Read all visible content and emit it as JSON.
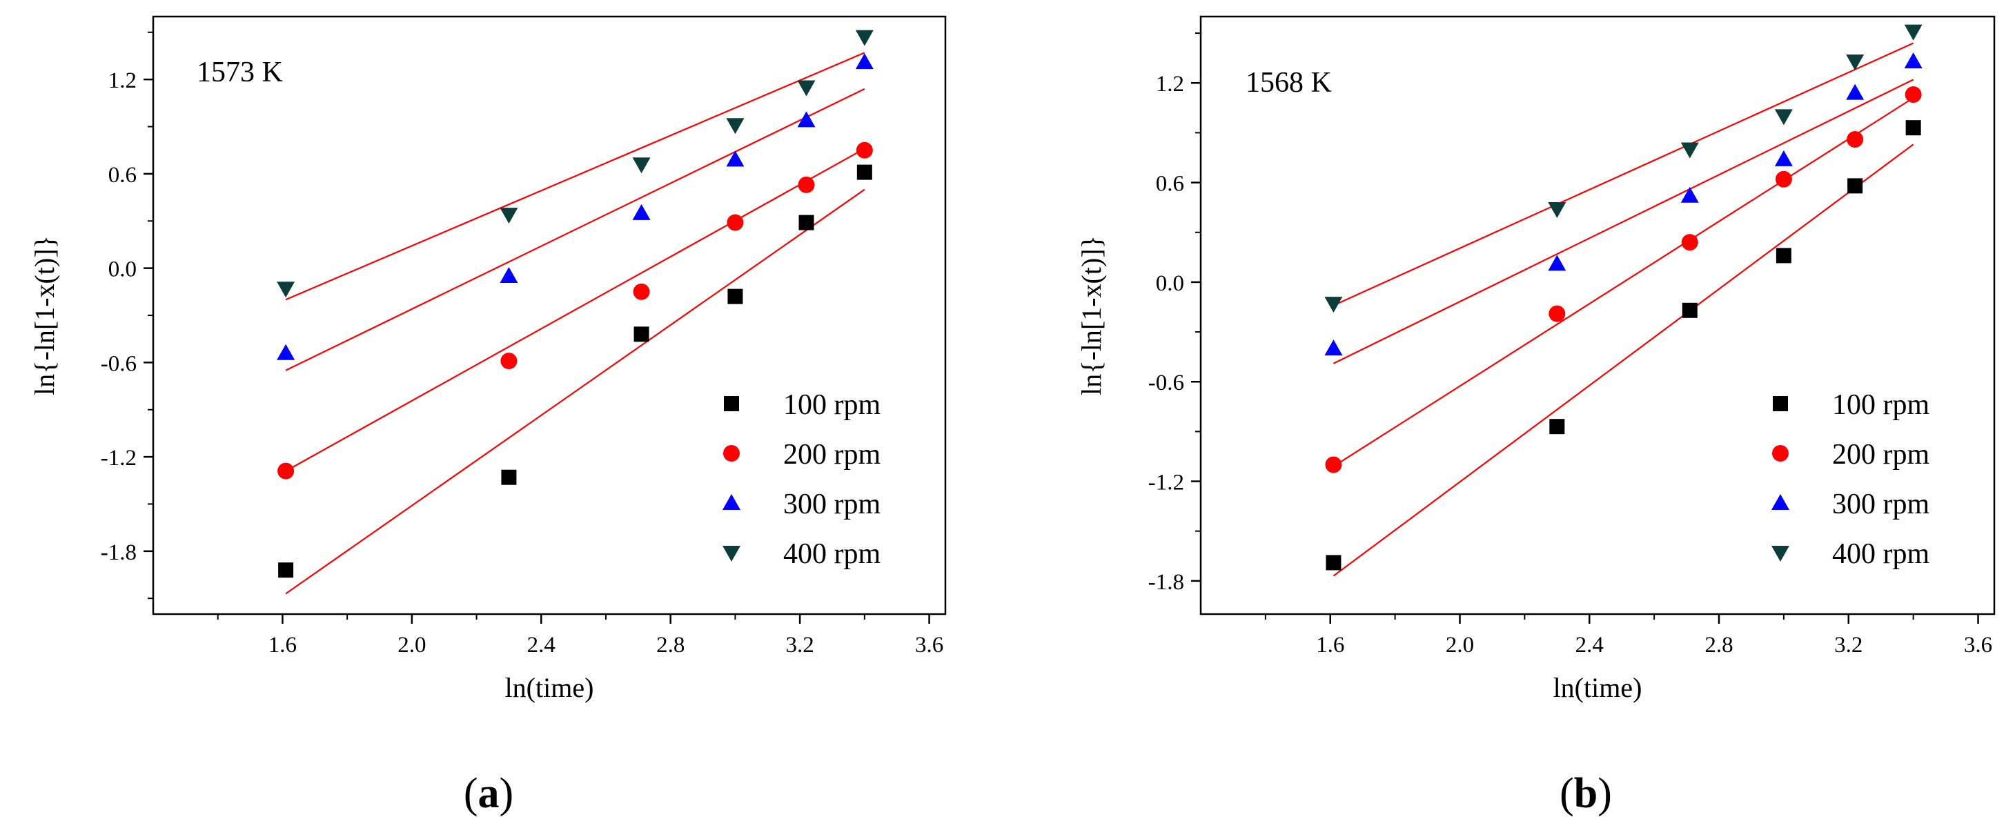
{
  "chart_data": [
    {
      "type": "scatter",
      "panel_label": "(a)",
      "annotation": "1573 K",
      "xlabel": "ln(time)",
      "ylabel": "ln{-ln[1-x(t)]}",
      "xlim": [
        1.2,
        3.65
      ],
      "ylim": [
        -2.2,
        1.6
      ],
      "xticks": [
        1.6,
        2.0,
        2.4,
        2.8,
        3.2,
        3.6
      ],
      "xtick_labels": [
        "1.6",
        "2.0",
        "2.4",
        "2.8",
        "3.2",
        "3.6"
      ],
      "yticks": [
        -1.8,
        -1.2,
        -0.6,
        0.0,
        0.6,
        1.2
      ],
      "ytick_labels": [
        "-1.8",
        "-1.2",
        "-0.6",
        "0.0",
        "0.6",
        "1.2"
      ],
      "legend_position": "bottom-right",
      "series": [
        {
          "name": "100 rpm",
          "marker": "square",
          "color": "#000000",
          "line_color": "#ff0000",
          "x": [
            1.61,
            2.3,
            2.71,
            3.0,
            3.22,
            3.4
          ],
          "y": [
            -1.92,
            -1.33,
            -0.42,
            -0.18,
            0.29,
            0.61
          ],
          "fit": [
            [
              1.61,
              -2.07
            ],
            [
              3.4,
              0.5
            ]
          ]
        },
        {
          "name": "200 rpm",
          "marker": "circle",
          "color": "#ff0000",
          "line_color": "#ff0000",
          "x": [
            1.61,
            2.3,
            2.71,
            3.0,
            3.22,
            3.4
          ],
          "y": [
            -1.29,
            -0.59,
            -0.15,
            0.29,
            0.53,
            0.75
          ],
          "fit": [
            [
              1.61,
              -1.29
            ],
            [
              3.4,
              0.76
            ]
          ]
        },
        {
          "name": "300 rpm",
          "marker": "triangle-up",
          "color": "#0000ff",
          "line_color": "#ff0000",
          "x": [
            1.61,
            2.3,
            2.71,
            3.0,
            3.22,
            3.4
          ],
          "y": [
            -0.54,
            -0.05,
            0.35,
            0.69,
            0.94,
            1.31
          ],
          "fit": [
            [
              1.61,
              -0.65
            ],
            [
              3.4,
              1.14
            ]
          ]
        },
        {
          "name": "400 rpm",
          "marker": "triangle-down",
          "color": "#0d3d3a",
          "line_color": "#ff0000",
          "x": [
            1.61,
            2.3,
            2.71,
            3.0,
            3.22,
            3.4
          ],
          "y": [
            -0.13,
            0.34,
            0.66,
            0.91,
            1.15,
            1.47
          ],
          "fit": [
            [
              1.61,
              -0.2
            ],
            [
              3.4,
              1.37
            ]
          ]
        }
      ]
    },
    {
      "type": "scatter",
      "panel_label": "(b)",
      "annotation": "1568 K",
      "xlabel": "ln(time)",
      "ylabel": "ln{-ln[1-x(t)]}",
      "xlim": [
        1.2,
        3.65
      ],
      "ylim": [
        -2.0,
        1.6
      ],
      "xticks": [
        1.6,
        2.0,
        2.4,
        2.8,
        3.2,
        3.6
      ],
      "xtick_labels": [
        "1.6",
        "2.0",
        "2.4",
        "2.8",
        "3.2",
        "3.6"
      ],
      "yticks": [
        -1.8,
        -1.2,
        -0.6,
        0.0,
        0.6,
        1.2
      ],
      "ytick_labels": [
        "-1.8",
        "-1.2",
        "-0.6",
        "0.0",
        "0.6",
        "1.2"
      ],
      "legend_position": "bottom-right",
      "series": [
        {
          "name": "100 rpm",
          "marker": "square",
          "color": "#000000",
          "line_color": "#ff0000",
          "x": [
            1.61,
            2.3,
            2.71,
            3.0,
            3.22,
            3.4
          ],
          "y": [
            -1.69,
            -0.87,
            -0.17,
            0.16,
            0.58,
            0.93
          ],
          "fit": [
            [
              1.61,
              -1.77
            ],
            [
              3.4,
              0.83
            ]
          ]
        },
        {
          "name": "200 rpm",
          "marker": "circle",
          "color": "#ff0000",
          "line_color": "#ff0000",
          "x": [
            1.61,
            2.3,
            2.71,
            3.0,
            3.22,
            3.4
          ],
          "y": [
            -1.1,
            -0.19,
            0.24,
            0.62,
            0.86,
            1.13
          ],
          "fit": [
            [
              1.61,
              -1.11
            ],
            [
              3.4,
              1.11
            ]
          ]
        },
        {
          "name": "300 rpm",
          "marker": "triangle-up",
          "color": "#0000ff",
          "line_color": "#ff0000",
          "x": [
            1.61,
            2.3,
            2.71,
            3.0,
            3.22,
            3.4
          ],
          "y": [
            -0.4,
            0.11,
            0.52,
            0.74,
            1.14,
            1.33
          ],
          "fit": [
            [
              1.61,
              -0.49
            ],
            [
              3.4,
              1.22
            ]
          ]
        },
        {
          "name": "400 rpm",
          "marker": "triangle-down",
          "color": "#0d3d3a",
          "line_color": "#ff0000",
          "x": [
            1.61,
            2.3,
            2.71,
            3.0,
            3.22,
            3.4
          ],
          "y": [
            -0.13,
            0.44,
            0.8,
            1.0,
            1.33,
            1.51
          ],
          "fit": [
            [
              1.61,
              -0.14
            ],
            [
              3.4,
              1.44
            ]
          ]
        }
      ]
    }
  ]
}
